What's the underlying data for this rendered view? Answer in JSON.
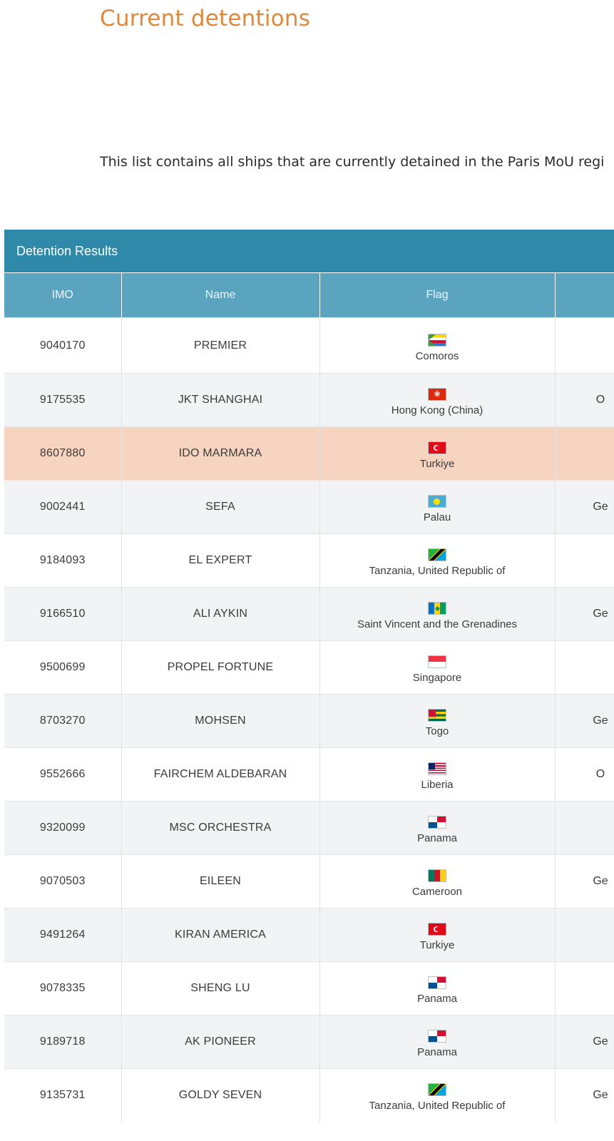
{
  "page": {
    "title": "Current detentions",
    "intro": "This list contains all ships that are currently detained in the Paris MoU regi"
  },
  "panel": {
    "header": "Detention Results"
  },
  "table": {
    "columns": [
      {
        "label": "IMO"
      },
      {
        "label": "Name"
      },
      {
        "label": "Flag"
      },
      {
        "label": ""
      }
    ],
    "rows": [
      {
        "imo": "9040170",
        "name": "PREMIER",
        "flag_icon": "comoros-flag-icon",
        "country": "Comoros",
        "extra": "",
        "highlight": false
      },
      {
        "imo": "9175535",
        "name": "JKT SHANGHAI",
        "flag_icon": "hong-kong-flag-icon",
        "country": "Hong Kong (China)",
        "extra": "O",
        "highlight": false
      },
      {
        "imo": "8607880",
        "name": "IDO MARMARA",
        "flag_icon": "turkey-flag-icon",
        "country": "Turkiye",
        "extra": "",
        "highlight": true
      },
      {
        "imo": "9002441",
        "name": "SEFA",
        "flag_icon": "palau-flag-icon",
        "country": "Palau",
        "extra": "Ge",
        "highlight": false
      },
      {
        "imo": "9184093",
        "name": "EL EXPERT",
        "flag_icon": "tanzania-flag-icon",
        "country": "Tanzania, United Republic of",
        "extra": "",
        "highlight": false
      },
      {
        "imo": "9166510",
        "name": "ALI AYKIN",
        "flag_icon": "saint-vincent-flag-icon",
        "country": "Saint Vincent and the Grenadines",
        "extra": "Ge",
        "highlight": false
      },
      {
        "imo": "9500699",
        "name": "PROPEL FORTUNE",
        "flag_icon": "singapore-flag-icon",
        "country": "Singapore",
        "extra": "",
        "highlight": false
      },
      {
        "imo": "8703270",
        "name": "MOHSEN",
        "flag_icon": "togo-flag-icon",
        "country": "Togo",
        "extra": "Ge",
        "highlight": false
      },
      {
        "imo": "9552666",
        "name": "FAIRCHEM ALDEBARAN",
        "flag_icon": "liberia-flag-icon",
        "country": "Liberia",
        "extra": "O",
        "highlight": false
      },
      {
        "imo": "9320099",
        "name": "MSC ORCHESTRA",
        "flag_icon": "panama-flag-icon",
        "country": "Panama",
        "extra": "",
        "highlight": false
      },
      {
        "imo": "9070503",
        "name": "EILEEN",
        "flag_icon": "cameroon-flag-icon",
        "country": "Cameroon",
        "extra": "Ge",
        "highlight": false
      },
      {
        "imo": "9491264",
        "name": "KIRAN AMERICA",
        "flag_icon": "turkey-flag-icon",
        "country": "Turkiye",
        "extra": "",
        "highlight": false
      },
      {
        "imo": "9078335",
        "name": "SHENG LU",
        "flag_icon": "panama-flag-icon",
        "country": "Panama",
        "extra": "",
        "highlight": false
      },
      {
        "imo": "9189718",
        "name": "AK PIONEER",
        "flag_icon": "panama-flag-icon",
        "country": "Panama",
        "extra": "Ge",
        "highlight": false
      },
      {
        "imo": "9135731",
        "name": "GOLDY SEVEN",
        "flag_icon": "tanzania-flag-icon",
        "country": "Tanzania, United Republic of",
        "extra": "Ge",
        "highlight": false
      }
    ]
  },
  "colors": {
    "title": "#e0873a",
    "panel_header": "#2e8aa8",
    "column_header": "#5ba4c0",
    "row_even": "#f2f3f5",
    "row_highlight": "#f6d4c0"
  }
}
